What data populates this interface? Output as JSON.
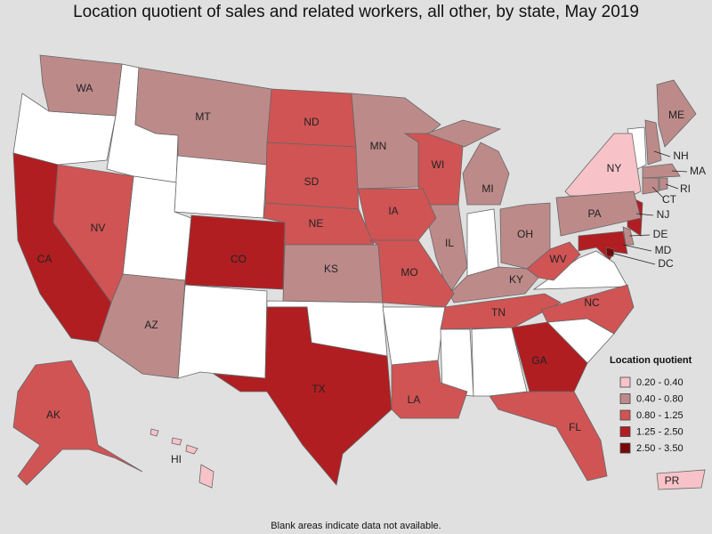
{
  "title": "Location quotient of sales and related workers, all other, by state, May 2019",
  "footnote": "Blank areas indicate data not available.",
  "legend": {
    "title": "Location quotient",
    "items": [
      {
        "label": "0.20 - 0.40",
        "color": "#f7c3c9"
      },
      {
        "label": "0.40 - 0.80",
        "color": "#bd8a8a"
      },
      {
        "label": "0.80 - 1.25",
        "color": "#d05454"
      },
      {
        "label": "1.25 - 2.50",
        "color": "#b01e22"
      },
      {
        "label": "2.50 - 3.50",
        "color": "#780808"
      }
    ]
  },
  "states": [
    {
      "abbr": "WA",
      "color": "#bd8a8a"
    },
    {
      "abbr": "MT",
      "color": "#bd8a8a"
    },
    {
      "abbr": "ND",
      "color": "#d05454"
    },
    {
      "abbr": "SD",
      "color": "#d05454"
    },
    {
      "abbr": "MN",
      "color": "#bd8a8a"
    },
    {
      "abbr": "WI",
      "color": "#d05454"
    },
    {
      "abbr": "MI",
      "color": "#bd8a8a"
    },
    {
      "abbr": "ME",
      "color": "#bd8a8a"
    },
    {
      "abbr": "NH",
      "color": "#bd8a8a"
    },
    {
      "abbr": "MA",
      "color": "#bd8a8a"
    },
    {
      "abbr": "RI",
      "color": "#bd8a8a"
    },
    {
      "abbr": "CT",
      "color": "#bd8a8a"
    },
    {
      "abbr": "NY",
      "color": "#f7c3c9"
    },
    {
      "abbr": "NJ",
      "color": "#b01e22"
    },
    {
      "abbr": "PA",
      "color": "#bd8a8a"
    },
    {
      "abbr": "DE",
      "color": "#bd8a8a"
    },
    {
      "abbr": "MD",
      "color": "#b01e22"
    },
    {
      "abbr": "DC",
      "color": "#780808"
    },
    {
      "abbr": "OH",
      "color": "#bd8a8a"
    },
    {
      "abbr": "WV",
      "color": "#d05454"
    },
    {
      "abbr": "KY",
      "color": "#bd8a8a"
    },
    {
      "abbr": "IL",
      "color": "#bd8a8a"
    },
    {
      "abbr": "IA",
      "color": "#d05454"
    },
    {
      "abbr": "NE",
      "color": "#d05454"
    },
    {
      "abbr": "KS",
      "color": "#bd8a8a"
    },
    {
      "abbr": "MO",
      "color": "#d05454"
    },
    {
      "abbr": "CO",
      "color": "#b01e22"
    },
    {
      "abbr": "NV",
      "color": "#d05454"
    },
    {
      "abbr": "CA",
      "color": "#b01e22"
    },
    {
      "abbr": "AZ",
      "color": "#bd8a8a"
    },
    {
      "abbr": "TX",
      "color": "#b01e22"
    },
    {
      "abbr": "LA",
      "color": "#d05454"
    },
    {
      "abbr": "TN",
      "color": "#d05454"
    },
    {
      "abbr": "NC",
      "color": "#d05454"
    },
    {
      "abbr": "GA",
      "color": "#b01e22"
    },
    {
      "abbr": "FL",
      "color": "#d05454"
    },
    {
      "abbr": "AK",
      "color": "#d05454"
    },
    {
      "abbr": "HI",
      "color": "#f7c3c9"
    },
    {
      "abbr": "PR",
      "color": "#f7c3c9"
    }
  ]
}
